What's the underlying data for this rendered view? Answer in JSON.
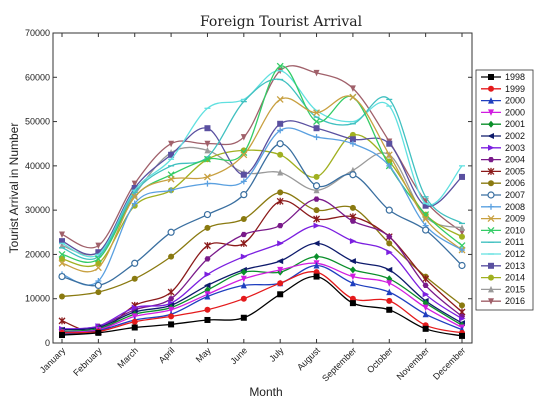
{
  "chart_data": {
    "type": "line",
    "title": "Foreign Tourist Arrival",
    "xlabel": "Month",
    "ylabel": "Tourist Arrival in Number",
    "ylim": [
      0,
      70000
    ],
    "yticks": [
      0,
      10000,
      20000,
      30000,
      40000,
      50000,
      60000,
      70000
    ],
    "grid": false,
    "legend_position": "right",
    "categories": [
      "January",
      "February",
      "March",
      "April",
      "May",
      "June",
      "July",
      "August",
      "September",
      "October",
      "November",
      "December"
    ],
    "series": [
      {
        "name": "1998",
        "color": "#000000",
        "marker": "square",
        "values": [
          1800,
          2300,
          3500,
          4200,
          5200,
          5700,
          11000,
          15000,
          9000,
          7500,
          3200,
          1600
        ]
      },
      {
        "name": "1999",
        "color": "#e41a1c",
        "marker": "circle",
        "values": [
          2300,
          2600,
          4800,
          6000,
          7500,
          10000,
          13500,
          16000,
          10000,
          9500,
          4000,
          2300
        ]
      },
      {
        "name": "2000",
        "color": "#1f3fbf",
        "marker": "triangle-up",
        "values": [
          2000,
          2800,
          5200,
          6500,
          10500,
          13000,
          13500,
          17500,
          13500,
          11500,
          6500,
          3000
        ]
      },
      {
        "name": "2000",
        "color": "#d11de0",
        "marker": "triangle-down",
        "values": [
          2400,
          3000,
          6000,
          7500,
          11000,
          14500,
          16500,
          18000,
          15000,
          13500,
          8000,
          3500
        ]
      },
      {
        "name": "2001",
        "color": "#0a8f2a",
        "marker": "diamond",
        "values": [
          2600,
          3200,
          6500,
          8000,
          12000,
          16000,
          16000,
          19500,
          16500,
          14500,
          9000,
          4000
        ]
      },
      {
        "name": "2002",
        "color": "#0d1a6b",
        "marker": "triangle-left",
        "values": [
          3000,
          3500,
          7000,
          8500,
          13000,
          16500,
          18500,
          22500,
          18500,
          16500,
          9500,
          4500
        ]
      },
      {
        "name": "2003",
        "color": "#7b1fe0",
        "marker": "triangle-right",
        "values": [
          3200,
          3800,
          8000,
          9000,
          15500,
          19500,
          22500,
          26500,
          23000,
          20500,
          11000,
          5500
        ]
      },
      {
        "name": "2004",
        "color": "#7a1a8a",
        "marker": "hexagon",
        "values": [
          3000,
          3800,
          7500,
          10000,
          19000,
          24500,
          26500,
          32500,
          27500,
          24000,
          13000,
          6000
        ]
      },
      {
        "name": "2005",
        "color": "#8b1a1a",
        "marker": "star",
        "values": [
          5000,
          2500,
          8500,
          11500,
          22000,
          22500,
          32000,
          28000,
          28500,
          24000,
          14500,
          7000
        ]
      },
      {
        "name": "2006",
        "color": "#8a7a10",
        "marker": "circle",
        "values": [
          10500,
          11500,
          14500,
          19500,
          26000,
          28000,
          34000,
          30000,
          30500,
          22500,
          15000,
          8500
        ]
      },
      {
        "name": "2007",
        "color": "#3a6fa0",
        "marker": "circle-open",
        "values": [
          15000,
          13000,
          18000,
          25000,
          29000,
          33500,
          45000,
          35500,
          38000,
          30000,
          25500,
          17500
        ]
      },
      {
        "name": "2008",
        "color": "#5aa0e0",
        "marker": "plus",
        "values": [
          15500,
          14000,
          31500,
          34500,
          36000,
          36500,
          48000,
          46500,
          45000,
          40000,
          26500,
          21000
        ]
      },
      {
        "name": "2009",
        "color": "#c8a040",
        "marker": "x",
        "values": [
          18000,
          17000,
          33000,
          37000,
          37500,
          42500,
          55000,
          52000,
          55500,
          42500,
          28000,
          21000
        ]
      },
      {
        "name": "2010",
        "color": "#33cc66",
        "marker": "x",
        "values": [
          20000,
          19000,
          33000,
          38000,
          41500,
          43000,
          62500,
          50000,
          55500,
          40000,
          29000,
          22000
        ]
      },
      {
        "name": "2011",
        "color": "#40c0c0",
        "marker": "line",
        "values": [
          21500,
          19500,
          34000,
          40000,
          42000,
          54500,
          59500,
          51000,
          49500,
          55000,
          33000,
          27000
        ]
      },
      {
        "name": "2012",
        "color": "#60e0e0",
        "marker": "line",
        "values": [
          22500,
          20000,
          34500,
          41500,
          53000,
          55000,
          61500,
          52500,
          50000,
          53500,
          31500,
          40000
        ]
      },
      {
        "name": "2013",
        "color": "#5a50a0",
        "marker": "square",
        "values": [
          23000,
          20500,
          35000,
          42500,
          48500,
          38000,
          49500,
          48500,
          46000,
          45000,
          31000,
          37500
        ]
      },
      {
        "name": "2014",
        "color": "#a0b020",
        "marker": "circle",
        "values": [
          19000,
          18000,
          31000,
          34500,
          41500,
          43500,
          42500,
          37500,
          47000,
          41000,
          29000,
          24000
        ]
      },
      {
        "name": "2015",
        "color": "#9a9a9a",
        "marker": "triangle-up",
        "values": [
          22000,
          20500,
          33500,
          43000,
          43500,
          38500,
          38500,
          34500,
          39000,
          42500,
          28500,
          26000
        ]
      },
      {
        "name": "2016",
        "color": "#a0606a",
        "marker": "triangle-down",
        "values": [
          24500,
          22000,
          36000,
          45000,
          45000,
          46500,
          61500,
          61000,
          57500,
          45500,
          32000,
          25000
        ]
      }
    ]
  }
}
